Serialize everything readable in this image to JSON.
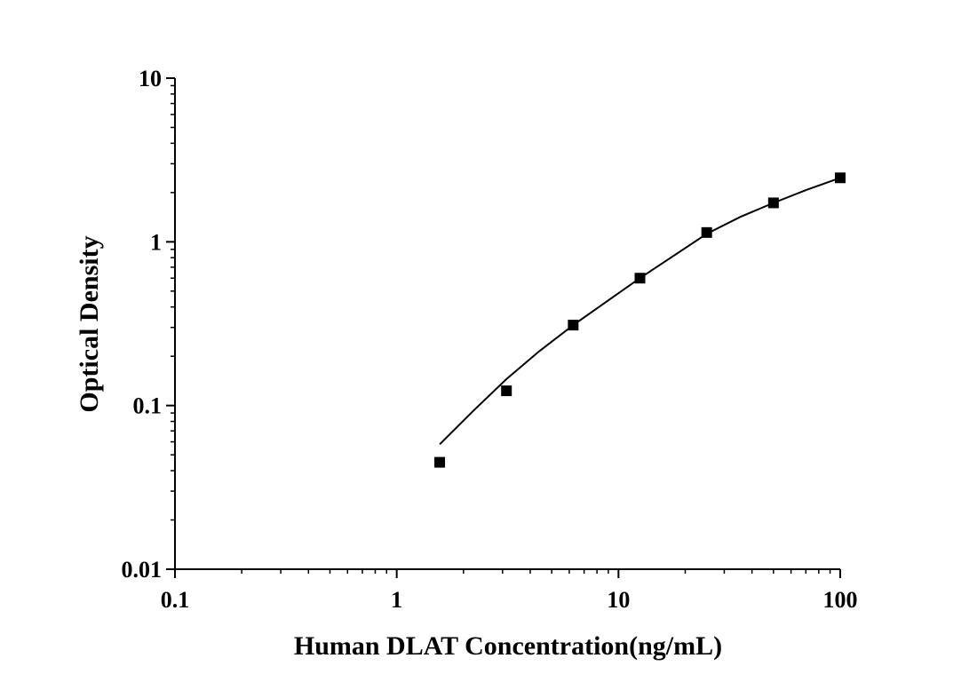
{
  "chart_data": {
    "type": "scatter",
    "xlabel": "Human DLAT Concentration(ng/mL)",
    "ylabel": "Optical Density",
    "x_scale": "log",
    "y_scale": "log",
    "xlim": [
      0.1,
      100
    ],
    "ylim": [
      0.01,
      10
    ],
    "x_ticks": [
      0.1,
      1,
      10,
      100
    ],
    "x_tick_labels": [
      "0.1",
      "1",
      "10",
      "100"
    ],
    "y_ticks": [
      0.01,
      0.1,
      1,
      10
    ],
    "y_tick_labels": [
      "0.01",
      "0.1",
      "1",
      "10"
    ],
    "grid": false,
    "series": [
      {
        "marker": "square",
        "color": "#000000",
        "x": [
          1.5625,
          3.125,
          6.25,
          12.5,
          25,
          50,
          100
        ],
        "y": [
          0.045,
          0.123,
          0.31,
          0.6,
          1.14,
          1.73,
          2.46
        ]
      }
    ],
    "fit_curve": {
      "color": "#000000",
      "x": [
        1.5625,
        2.2,
        3.125,
        4.4,
        6.25,
        8.8,
        12.5,
        17.7,
        25,
        35.4,
        50,
        70.7,
        100
      ],
      "y": [
        0.058,
        0.092,
        0.145,
        0.215,
        0.31,
        0.43,
        0.6,
        0.82,
        1.12,
        1.42,
        1.73,
        2.08,
        2.46
      ]
    }
  }
}
